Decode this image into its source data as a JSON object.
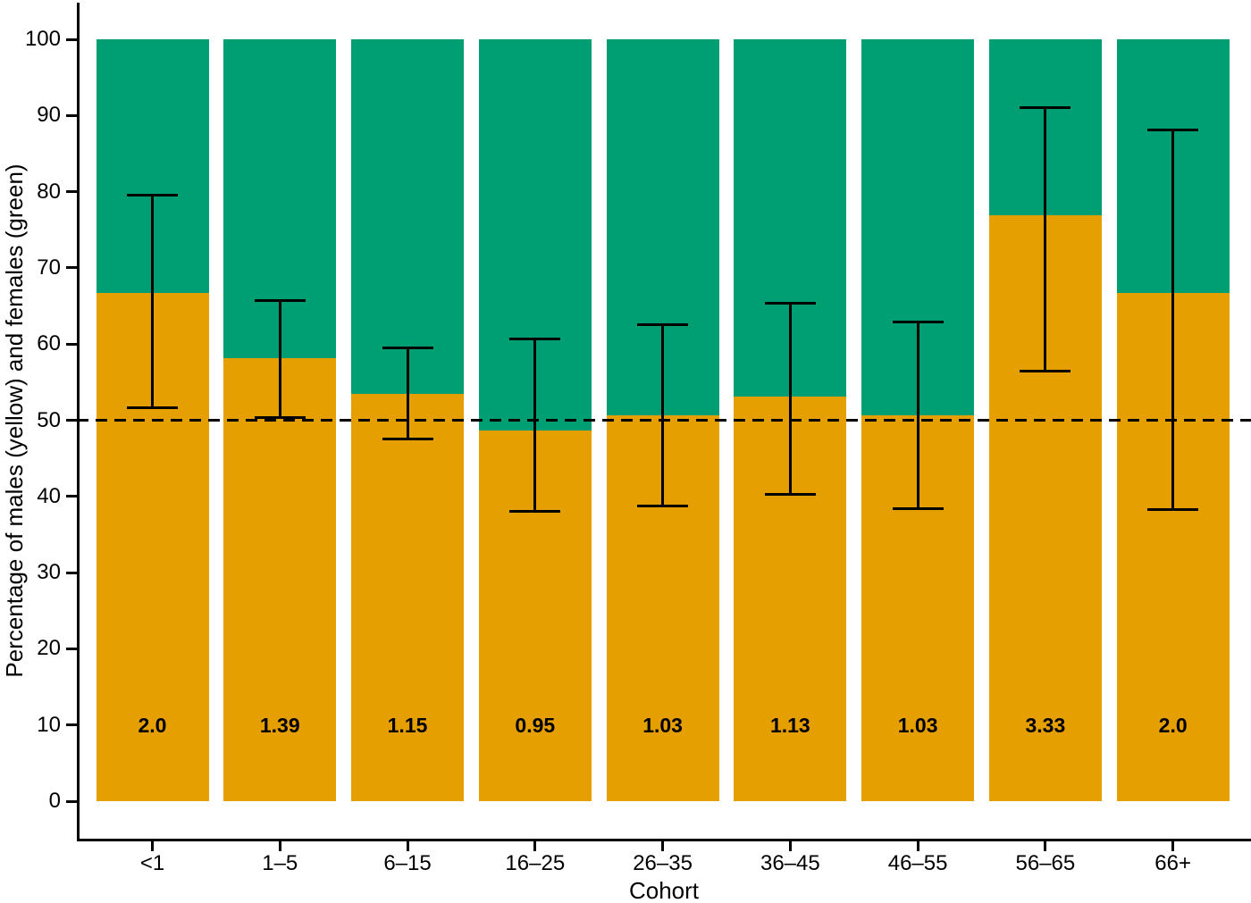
{
  "figure": {
    "background_color": "#FFFFFF",
    "axis_color": "#000000"
  },
  "chart_data": {
    "type": "bar",
    "stacked": true,
    "title": "",
    "xlabel": "Cohort",
    "ylabel": "Percentage of males (yellow) and females (green)",
    "ylim": [
      0,
      100
    ],
    "y_ticks": [
      0,
      10,
      20,
      30,
      40,
      50,
      60,
      70,
      80,
      90,
      100
    ],
    "grid": false,
    "legend": "none (colors described in y-axis label)",
    "reference_line": {
      "y": 50,
      "style": "dashed",
      "color": "#000000"
    },
    "categories": [
      "<1",
      "1–5",
      "6–15",
      "16–25",
      "26–35",
      "36–45",
      "46–55",
      "56–65",
      "66+"
    ],
    "series": [
      {
        "name": "males",
        "color": "#E69F00",
        "values": [
          66.7,
          58.2,
          53.5,
          48.7,
          50.7,
          53.1,
          50.7,
          76.9,
          66.7
        ]
      },
      {
        "name": "females",
        "color": "#009E73",
        "values": [
          33.3,
          41.8,
          46.5,
          51.3,
          49.3,
          46.9,
          49.3,
          23.1,
          33.3
        ]
      }
    ],
    "error_bars": {
      "applies_to": "males (yellow segment top)",
      "color": "#000000",
      "values": [
        {
          "lower": 51.6,
          "upper": 79.6
        },
        {
          "lower": 50.4,
          "upper": 65.7
        },
        {
          "lower": 47.5,
          "upper": 59.5
        },
        {
          "lower": 38.0,
          "upper": 60.7
        },
        {
          "lower": 38.7,
          "upper": 62.6
        },
        {
          "lower": 40.3,
          "upper": 65.4
        },
        {
          "lower": 38.4,
          "upper": 62.9
        },
        {
          "lower": 56.4,
          "upper": 91.0
        },
        {
          "lower": 38.3,
          "upper": 88.1
        }
      ]
    },
    "bar_labels": {
      "description": "male-to-female ratio printed inside each bar",
      "y_position": 10,
      "values": [
        "2.0",
        "1.39",
        "1.15",
        "0.95",
        "1.03",
        "1.13",
        "1.03",
        "3.33",
        "2.0"
      ]
    }
  }
}
